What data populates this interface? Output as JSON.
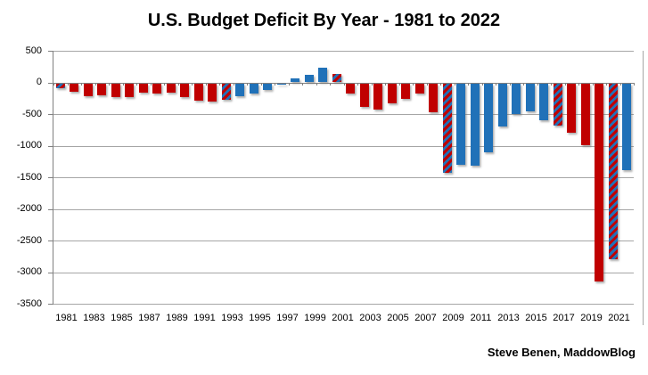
{
  "header": {
    "title": "U.S. Budget Deficit By Year - 1981 to 2022"
  },
  "footer": {
    "attribution": "Steve Benen, MaddowBlog"
  },
  "colors": {
    "republican_red": "#C00000",
    "democrat_blue": "#2071B8",
    "gridline": "#A6A6A6",
    "axis": "#808080",
    "text": "#000000"
  },
  "chart_data": {
    "type": "bar",
    "title": "U.S. Budget Deficit By Year - 1981 to 2022",
    "xlabel": "",
    "ylabel": "",
    "ylim": [
      -3500,
      500
    ],
    "ytick_interval": 500,
    "grid": true,
    "legend": null,
    "y_ticks": [
      {
        "value": 500,
        "label": "500"
      },
      {
        "value": 0,
        "label": "0"
      },
      {
        "value": -500,
        "label": "-500"
      },
      {
        "value": -1000,
        "label": "-1000"
      },
      {
        "value": -1500,
        "label": "-1500"
      },
      {
        "value": -2000,
        "label": "-2000"
      },
      {
        "value": -2500,
        "label": "-2500"
      },
      {
        "value": -3000,
        "label": "-3000"
      },
      {
        "value": -3500,
        "label": "-3500"
      }
    ],
    "x_tick_labels": [
      "1981",
      "1983",
      "1985",
      "1987",
      "1989",
      "1991",
      "1993",
      "1995",
      "1997",
      "1999",
      "2001",
      "2003",
      "2005",
      "2007",
      "2009",
      "2011",
      "2013",
      "2015",
      "2017",
      "2019",
      "2021"
    ],
    "series": [
      {
        "year": 1981,
        "value": -79,
        "style": "striped"
      },
      {
        "year": 1982,
        "value": -128,
        "style": "red"
      },
      {
        "year": 1983,
        "value": -208,
        "style": "red"
      },
      {
        "year": 1984,
        "value": -185,
        "style": "red"
      },
      {
        "year": 1985,
        "value": -212,
        "style": "red"
      },
      {
        "year": 1986,
        "value": -221,
        "style": "red"
      },
      {
        "year": 1987,
        "value": -150,
        "style": "red"
      },
      {
        "year": 1988,
        "value": -155,
        "style": "red"
      },
      {
        "year": 1989,
        "value": -153,
        "style": "red"
      },
      {
        "year": 1990,
        "value": -221,
        "style": "red"
      },
      {
        "year": 1991,
        "value": -269,
        "style": "red"
      },
      {
        "year": 1992,
        "value": -290,
        "style": "red"
      },
      {
        "year": 1993,
        "value": -255,
        "style": "striped"
      },
      {
        "year": 1994,
        "value": -203,
        "style": "blue"
      },
      {
        "year": 1995,
        "value": -164,
        "style": "blue"
      },
      {
        "year": 1996,
        "value": -107,
        "style": "blue"
      },
      {
        "year": 1997,
        "value": -22,
        "style": "blue"
      },
      {
        "year": 1998,
        "value": 69,
        "style": "blue"
      },
      {
        "year": 1999,
        "value": 126,
        "style": "blue"
      },
      {
        "year": 2000,
        "value": 236,
        "style": "blue"
      },
      {
        "year": 2001,
        "value": 128,
        "style": "striped"
      },
      {
        "year": 2002,
        "value": -158,
        "style": "red"
      },
      {
        "year": 2003,
        "value": -378,
        "style": "red"
      },
      {
        "year": 2004,
        "value": -413,
        "style": "red"
      },
      {
        "year": 2005,
        "value": -318,
        "style": "red"
      },
      {
        "year": 2006,
        "value": -248,
        "style": "red"
      },
      {
        "year": 2007,
        "value": -161,
        "style": "red"
      },
      {
        "year": 2008,
        "value": -459,
        "style": "red"
      },
      {
        "year": 2009,
        "value": -1413,
        "style": "striped"
      },
      {
        "year": 2010,
        "value": -1294,
        "style": "blue"
      },
      {
        "year": 2011,
        "value": -1300,
        "style": "blue"
      },
      {
        "year": 2012,
        "value": -1087,
        "style": "blue"
      },
      {
        "year": 2013,
        "value": -680,
        "style": "blue"
      },
      {
        "year": 2014,
        "value": -485,
        "style": "blue"
      },
      {
        "year": 2015,
        "value": -438,
        "style": "blue"
      },
      {
        "year": 2016,
        "value": -585,
        "style": "blue"
      },
      {
        "year": 2017,
        "value": -665,
        "style": "striped"
      },
      {
        "year": 2018,
        "value": -779,
        "style": "red"
      },
      {
        "year": 2019,
        "value": -984,
        "style": "red"
      },
      {
        "year": 2020,
        "value": -3132,
        "style": "red"
      },
      {
        "year": 2021,
        "value": -2775,
        "style": "striped"
      },
      {
        "year": 2022,
        "value": -1375,
        "style": "blue"
      }
    ]
  }
}
